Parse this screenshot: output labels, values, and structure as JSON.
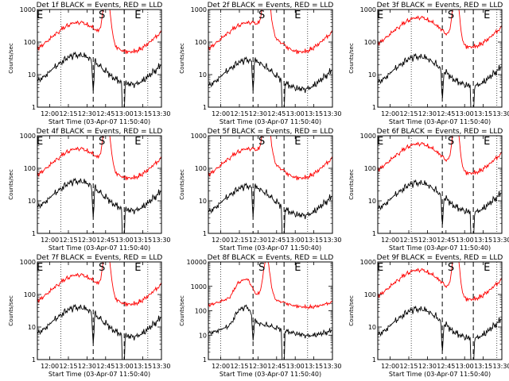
{
  "figure": {
    "background": "#ffffff"
  },
  "chart_data": [
    {
      "type": "line",
      "title": "Det 1f BLACK = Events, RED = LLD",
      "xlabel": "Start Time (03-Apr-07 11:50:40)",
      "ylabel": "Counts/sec",
      "yscale": "log",
      "ylim": [
        1,
        1000
      ],
      "yticks": [
        "1",
        "10",
        "100",
        "1000"
      ],
      "xlim": [
        "11:50",
        "13:30"
      ],
      "xticks": [
        "12:00",
        "12:15",
        "12:30",
        "12:45",
        "13:00",
        "13:15",
        "13:30"
      ],
      "markers": [
        {
          "label": "E",
          "time": "11:52"
        },
        {
          "label": "S",
          "time": "12:42"
        },
        {
          "label": "E",
          "time": "13:11"
        }
      ],
      "dotted_lines": [
        "12:09",
        "13:19"
      ],
      "dashed_lines": [
        "12:35",
        "13:00"
      ],
      "series": [
        {
          "name": "Events",
          "color": "#000000"
        },
        {
          "name": "LLD",
          "color": "#ff0000"
        }
      ]
    },
    {
      "type": "line",
      "title": "Det 2f BLACK = Events, RED = LLD",
      "xlabel": "Start Time (03-Apr-07 11:50:40)",
      "ylabel": "Counts/sec",
      "yscale": "log",
      "ylim": [
        1,
        1000
      ],
      "yticks": [
        "1",
        "10",
        "100",
        "1000"
      ],
      "xlim": [
        "11:50",
        "13:30"
      ],
      "xticks": [
        "12:00",
        "12:15",
        "12:30",
        "12:45",
        "13:00",
        "13:15",
        "13:30"
      ],
      "markers": [
        {
          "label": "S",
          "time": "12:33"
        },
        {
          "label": "E",
          "time": "13:02"
        }
      ],
      "dotted_lines": [
        "12:00",
        "13:10"
      ],
      "dashed_lines": [
        "12:26",
        "12:51"
      ],
      "series": [
        {
          "name": "Events",
          "color": "#000000"
        },
        {
          "name": "LLD",
          "color": "#ff0000"
        }
      ]
    },
    {
      "type": "line",
      "title": "Det 3f BLACK = Events, RED = LLD",
      "xlabel": "Start Time (03-Apr-07 11:50:40)",
      "ylabel": "Counts/sec",
      "yscale": "log",
      "ylim": [
        1,
        1000
      ],
      "yticks": [
        "1",
        "10",
        "100",
        "1000"
      ],
      "xlim": [
        "11:50",
        "13:30"
      ],
      "xticks": [
        "12:00",
        "12:15",
        "12:30",
        "12:45",
        "13:00",
        "13:15",
        "13:30"
      ],
      "markers": [
        {
          "label": "E",
          "time": "11:52"
        },
        {
          "label": "S",
          "time": "12:49"
        },
        {
          "label": "E",
          "time": "13:18"
        }
      ],
      "dotted_lines": [
        "12:17",
        "13:26"
      ],
      "dashed_lines": [
        "12:42",
        "13:07"
      ],
      "series": [
        {
          "name": "Events",
          "color": "#000000"
        },
        {
          "name": "LLD",
          "color": "#ff0000"
        }
      ]
    },
    {
      "type": "line",
      "title": "Det 4f BLACK = Events, RED = LLD",
      "xlabel": "Start Time (03-Apr-07 11:50:40)",
      "ylabel": "Counts/sec",
      "yscale": "log",
      "ylim": [
        1,
        1000
      ],
      "yticks": [
        "1",
        "10",
        "100",
        "1000"
      ],
      "xlim": [
        "11:50",
        "13:30"
      ],
      "xticks": [
        "12:00",
        "12:15",
        "12:30",
        "12:45",
        "13:00",
        "13:15",
        "13:30"
      ],
      "markers": [
        {
          "label": "E",
          "time": "11:52"
        },
        {
          "label": "S",
          "time": "12:42"
        },
        {
          "label": "E",
          "time": "13:11"
        }
      ],
      "dotted_lines": [
        "12:09",
        "13:19"
      ],
      "dashed_lines": [
        "12:35",
        "13:00"
      ],
      "series": [
        {
          "name": "Events",
          "color": "#000000"
        },
        {
          "name": "LLD",
          "color": "#ff0000"
        }
      ]
    },
    {
      "type": "line",
      "title": "Det 5f BLACK = Events, RED = LLD",
      "xlabel": "Start Time (03-Apr-07 11:50:40)",
      "ylabel": "Counts/sec",
      "yscale": "log",
      "ylim": [
        1,
        1000
      ],
      "yticks": [
        "1",
        "10",
        "100",
        "1000"
      ],
      "xlim": [
        "11:50",
        "13:30"
      ],
      "xticks": [
        "12:00",
        "12:15",
        "12:30",
        "12:45",
        "13:00",
        "13:15",
        "13:30"
      ],
      "markers": [
        {
          "label": "S",
          "time": "12:33"
        },
        {
          "label": "E",
          "time": "13:02"
        }
      ],
      "dotted_lines": [
        "12:00",
        "13:10"
      ],
      "dashed_lines": [
        "12:26",
        "12:51"
      ],
      "series": [
        {
          "name": "Events",
          "color": "#000000"
        },
        {
          "name": "LLD",
          "color": "#ff0000"
        }
      ]
    },
    {
      "type": "line",
      "title": "Det 6f BLACK = Events, RED = LLD",
      "xlabel": "Start Time (03-Apr-07 11:50:40)",
      "ylabel": "Counts/sec",
      "yscale": "log",
      "ylim": [
        1,
        1000
      ],
      "yticks": [
        "1",
        "10",
        "100",
        "1000"
      ],
      "xlim": [
        "11:50",
        "13:30"
      ],
      "xticks": [
        "12:00",
        "12:15",
        "12:30",
        "12:45",
        "13:00",
        "13:15",
        "13:30"
      ],
      "markers": [
        {
          "label": "E",
          "time": "11:52"
        },
        {
          "label": "S",
          "time": "12:49"
        },
        {
          "label": "E",
          "time": "13:18"
        }
      ],
      "dotted_lines": [
        "12:17",
        "13:26"
      ],
      "dashed_lines": [
        "12:42",
        "13:07"
      ],
      "series": [
        {
          "name": "Events",
          "color": "#000000"
        },
        {
          "name": "LLD",
          "color": "#ff0000"
        }
      ]
    },
    {
      "type": "line",
      "title": "Det 7f BLACK = Events, RED = LLD",
      "xlabel": "Start Time (03-Apr-07 11:50:40)",
      "ylabel": "Counts/sec",
      "yscale": "log",
      "ylim": [
        1,
        1000
      ],
      "yticks": [
        "1",
        "10",
        "100",
        "1000"
      ],
      "xlim": [
        "11:50",
        "13:30"
      ],
      "xticks": [
        "12:00",
        "12:15",
        "12:30",
        "12:45",
        "13:00",
        "13:15",
        "13:30"
      ],
      "markers": [
        {
          "label": "E",
          "time": "11:52"
        },
        {
          "label": "S",
          "time": "12:42"
        },
        {
          "label": "E",
          "time": "13:11"
        }
      ],
      "dotted_lines": [
        "12:09",
        "13:19"
      ],
      "dashed_lines": [
        "12:35",
        "13:00"
      ],
      "series": [
        {
          "name": "Events",
          "color": "#000000"
        },
        {
          "name": "LLD",
          "color": "#ff0000"
        }
      ]
    },
    {
      "type": "line",
      "title": "Det 8f BLACK = Events, RED = LLD",
      "xlabel": "Start Time (03-Apr-07 11:50:40)",
      "ylabel": "Counts/sec",
      "yscale": "log",
      "ylim": [
        1,
        10000
      ],
      "yticks": [
        "1",
        "10",
        "100",
        "1000",
        "10000"
      ],
      "xlim": [
        "11:50",
        "13:30"
      ],
      "xticks": [
        "12:00",
        "12:15",
        "12:30",
        "12:45",
        "13:00",
        "13:15",
        "13:30"
      ],
      "markers": [
        {
          "label": "S",
          "time": "12:33"
        },
        {
          "label": "E",
          "time": "13:02"
        }
      ],
      "dotted_lines": [
        "12:00",
        "13:10"
      ],
      "dashed_lines": [
        "12:26",
        "12:51"
      ],
      "series": [
        {
          "name": "Events",
          "color": "#000000"
        },
        {
          "name": "LLD",
          "color": "#ff0000"
        }
      ]
    },
    {
      "type": "line",
      "title": "Det 9f BLACK = Events, RED = LLD",
      "xlabel": "Start Time (03-Apr-07 11:50:40)",
      "ylabel": "Counts/sec",
      "yscale": "log",
      "ylim": [
        1,
        1000
      ],
      "yticks": [
        "1",
        "10",
        "100",
        "1000"
      ],
      "xlim": [
        "11:50",
        "13:30"
      ],
      "xticks": [
        "12:00",
        "12:15",
        "12:30",
        "12:45",
        "13:00",
        "13:15",
        "13:30"
      ],
      "markers": [
        {
          "label": "E",
          "time": "11:52"
        },
        {
          "label": "S",
          "time": "12:49"
        },
        {
          "label": "E",
          "time": "13:18"
        }
      ],
      "dotted_lines": [
        "12:17",
        "13:26"
      ],
      "dashed_lines": [
        "12:42",
        "13:07"
      ],
      "series": [
        {
          "name": "Events",
          "color": "#000000"
        },
        {
          "name": "LLD",
          "color": "#ff0000"
        }
      ]
    }
  ]
}
